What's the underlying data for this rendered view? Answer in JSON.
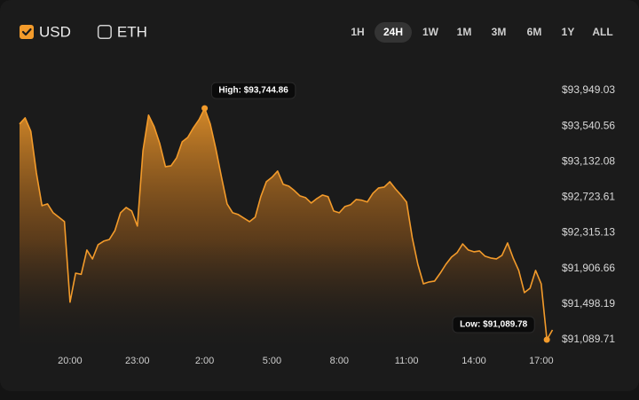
{
  "currencies": [
    {
      "label": "USD",
      "checked": true
    },
    {
      "label": "ETH",
      "checked": false
    }
  ],
  "ranges": [
    "1H",
    "24H",
    "1W",
    "1M",
    "3M",
    "6M",
    "1Y",
    "ALL"
  ],
  "selected_range": "24H",
  "chart_data": {
    "type": "area",
    "color": "#f39b2b",
    "x": [
      17.75,
      18,
      18.25,
      18.5,
      18.75,
      19,
      19.25,
      19.5,
      19.75,
      20,
      20.25,
      20.5,
      20.75,
      21,
      21.25,
      21.5,
      21.75,
      22,
      22.25,
      22.5,
      22.75,
      23,
      23.25,
      23.5,
      23.75,
      24,
      24.25,
      24.5,
      24.75,
      25,
      25.25,
      25.5,
      25.75,
      26,
      26.25,
      26.5,
      26.75,
      27,
      27.25,
      27.5,
      27.75,
      28,
      28.25,
      28.5,
      28.75,
      29,
      29.25,
      29.5,
      29.75,
      30,
      30.25,
      30.5,
      30.75,
      31,
      31.25,
      31.5,
      31.75,
      32,
      32.25,
      32.5,
      32.75,
      33,
      33.25,
      33.5,
      33.75,
      34,
      34.25,
      34.5,
      34.75,
      35,
      35.25,
      35.5,
      35.75,
      36,
      36.25,
      36.5,
      36.75,
      37,
      37.25,
      37.5,
      37.75,
      38,
      38.25,
      38.5,
      38.75,
      39,
      39.25,
      39.5,
      39.75,
      40,
      40.25,
      40.5,
      40.75,
      41,
      41.25,
      41.5
    ],
    "values": [
      93564,
      93635,
      93482,
      93004,
      92627,
      92648,
      92546,
      92495,
      92444,
      91520,
      91853,
      91840,
      92118,
      92016,
      92179,
      92220,
      92240,
      92342,
      92546,
      92607,
      92566,
      92393,
      93258,
      93666,
      93533,
      93340,
      93075,
      93085,
      93177,
      93360,
      93411,
      93523,
      93615,
      93744.86,
      93564,
      93279,
      92953,
      92648,
      92546,
      92525,
      92485,
      92444,
      92495,
      92729,
      92902,
      92953,
      93024,
      92872,
      92851,
      92800,
      92739,
      92719,
      92658,
      92709,
      92749,
      92730,
      92566,
      92546,
      92617,
      92637,
      92698,
      92690,
      92670,
      92770,
      92831,
      92841,
      92902,
      92821,
      92749,
      92668,
      92261,
      91955,
      91731,
      91752,
      91762,
      91854,
      91955,
      92037,
      92088,
      92189,
      92118,
      92098,
      92108,
      92047,
      92027,
      92017,
      92057,
      92200,
      92027,
      91884,
      91630,
      91680,
      91884,
      91731,
      91089.78,
      91202
    ],
    "xlim": [
      17.67,
      41.6
    ],
    "xticks": [
      {
        "value": 20,
        "label": "20:00"
      },
      {
        "value": 23,
        "label": "23:00"
      },
      {
        "value": 26,
        "label": "2:00"
      },
      {
        "value": 29,
        "label": "5:00"
      },
      {
        "value": 32,
        "label": "8:00"
      },
      {
        "value": 35,
        "label": "11:00"
      },
      {
        "value": 38,
        "label": "14:00"
      },
      {
        "value": 41,
        "label": "17:00"
      }
    ],
    "ylim": [
      91089.71,
      93949.03
    ],
    "yticks": [
      {
        "value": 93949.03,
        "label": "$93,949.03"
      },
      {
        "value": 93540.56,
        "label": "$93,540.56"
      },
      {
        "value": 93132.08,
        "label": "$93,132.08"
      },
      {
        "value": 92723.61,
        "label": "$92,723.61"
      },
      {
        "value": 92315.13,
        "label": "$92,315.13"
      },
      {
        "value": 91906.66,
        "label": "$91,906.66"
      },
      {
        "value": 91498.19,
        "label": "$91,498.19"
      },
      {
        "value": 91089.71,
        "label": "$91,089.71"
      }
    ],
    "annotations": [
      {
        "text": "High: $93,744.86",
        "x": 26,
        "y": 93744.86
      },
      {
        "text": "Low: $91,089.78",
        "x": 41.25,
        "y": 91089.78
      }
    ]
  }
}
